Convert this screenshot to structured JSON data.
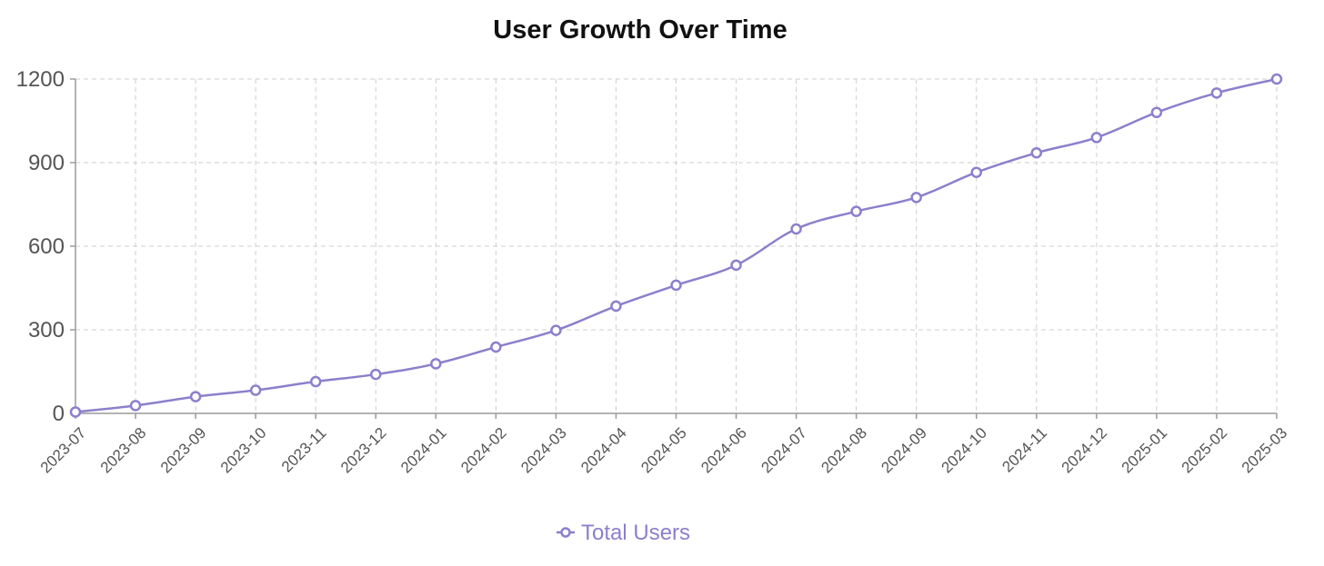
{
  "chart_data": {
    "type": "line",
    "title": "User Growth Over Time",
    "xlabel": "",
    "ylabel": "",
    "categories": [
      "2023-07",
      "2023-08",
      "2023-09",
      "2023-10",
      "2023-11",
      "2023-12",
      "2024-01",
      "2024-02",
      "2024-03",
      "2024-04",
      "2024-05",
      "2024-06",
      "2024-07",
      "2024-08",
      "2024-09",
      "2024-10",
      "2024-11",
      "2024-12",
      "2025-01",
      "2025-02",
      "2025-03"
    ],
    "series": [
      {
        "name": "Total Users",
        "color": "#8b80cc",
        "values": [
          5,
          28,
          60,
          83,
          114,
          140,
          178,
          238,
          298,
          385,
          460,
          532,
          662,
          725,
          775,
          865,
          935,
          990,
          1080,
          1150,
          1200
        ]
      }
    ],
    "ylim": [
      0,
      1200
    ],
    "yticks": [
      0,
      300,
      600,
      900,
      1200
    ],
    "grid": true,
    "legend_position": "bottom-center",
    "marker": "hollow-circle"
  }
}
